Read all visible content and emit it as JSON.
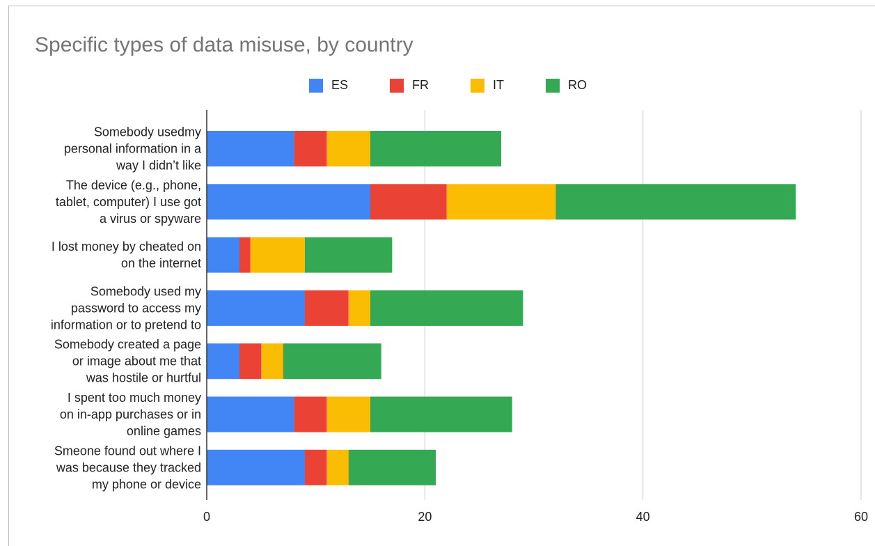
{
  "chart_data": {
    "type": "bar",
    "orientation": "horizontal",
    "stacked": true,
    "title": "Specific types of data misuse, by country",
    "categories": [
      [
        "Somebody usedmy",
        "personal information in a",
        "way I didn’t like"
      ],
      [
        "The device (e.g., phone,",
        "tablet, computer) I use got",
        "a virus or spyware"
      ],
      [
        "I lost money by cheated on",
        "on the internet"
      ],
      [
        "Somebody used my",
        "password to access my",
        "information or to pretend to"
      ],
      [
        "Somebody created a page",
        "or image about me that",
        "was hostile or hurtful"
      ],
      [
        "I spent too much money",
        "on in-app purchases or in",
        "online games"
      ],
      [
        "Smeone found out where I",
        "was because they tracked",
        "my phone or device"
      ]
    ],
    "series": [
      {
        "name": "ES",
        "color": "#4285f4",
        "values": [
          8,
          15,
          3,
          9,
          3,
          8,
          9
        ]
      },
      {
        "name": "FR",
        "color": "#ea4335",
        "values": [
          3,
          7,
          1,
          4,
          2,
          3,
          2
        ]
      },
      {
        "name": "IT",
        "color": "#fbbc04",
        "values": [
          4,
          10,
          5,
          2,
          2,
          4,
          2
        ]
      },
      {
        "name": "RO",
        "color": "#34a853",
        "values": [
          12,
          22,
          8,
          14,
          9,
          13,
          8
        ]
      }
    ],
    "xlim": [
      0,
      60
    ],
    "xticks": [
      "0",
      "20",
      "40",
      "60"
    ],
    "grid": true,
    "legend_position": "top-center"
  }
}
